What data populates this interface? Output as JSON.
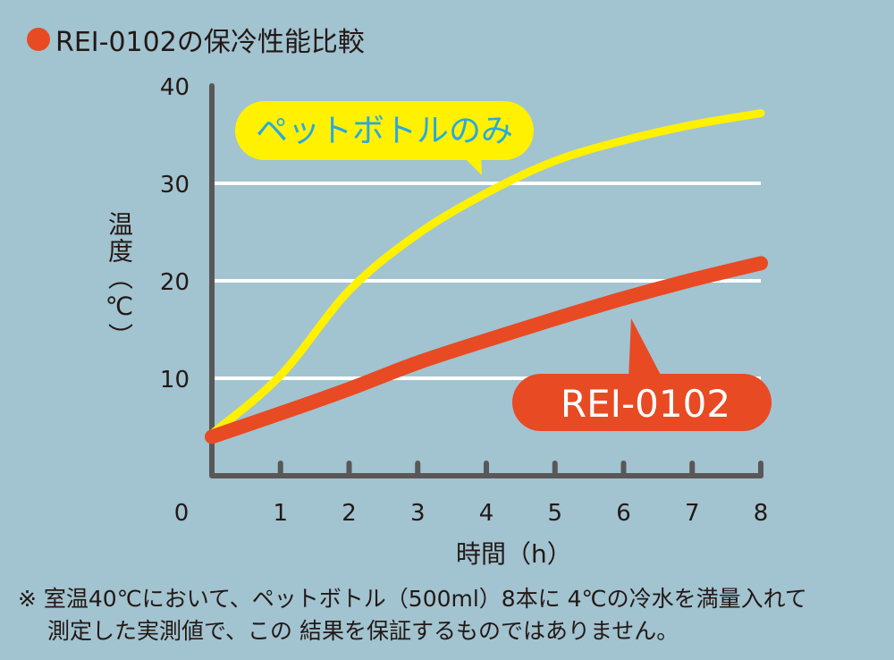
{
  "title": "REI-0102の保冷性能比較",
  "chart_data": {
    "type": "line",
    "title": "REI-0102の保冷性能比較",
    "xlabel": "時間（h）",
    "ylabel": "温度（℃）",
    "x": [
      0,
      1,
      2,
      3,
      4,
      5,
      6,
      7,
      8
    ],
    "xticks": [
      "0",
      "1",
      "2",
      "3",
      "4",
      "5",
      "6",
      "7",
      "8"
    ],
    "yticks": [
      "10",
      "20",
      "30",
      "40"
    ],
    "xlim": [
      0,
      8
    ],
    "ylim": [
      0,
      40
    ],
    "grid": "horizontal",
    "series": [
      {
        "name": "ペットボトルのみ",
        "color": "#fff100",
        "label_color": "#29a9e0",
        "values": [
          4.3,
          10.3,
          19,
          24.8,
          29,
          32.3,
          34.4,
          36,
          37.2
        ]
      },
      {
        "name": "REI-0102",
        "color": "#e84a23",
        "label_color": "#ffffff",
        "values": [
          4.0,
          6.4,
          8.9,
          11.6,
          13.9,
          16.1,
          18.2,
          20.1,
          21.8
        ]
      }
    ]
  },
  "footnote": {
    "line1": "※ 室温40℃において、ペットボトル（500ml）8本に 4℃の冷水を満量入れて",
    "line2": "測定した実測値で、この 結果を保証するものではありません。"
  }
}
